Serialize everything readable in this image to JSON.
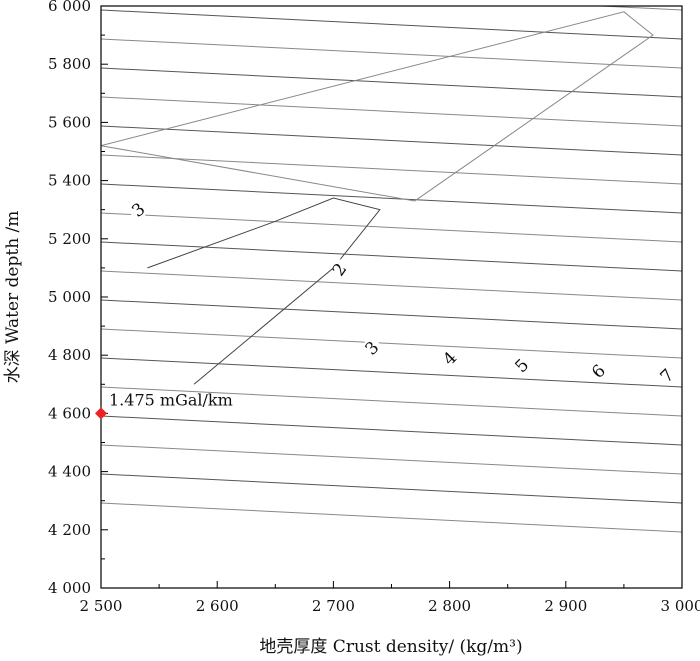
{
  "chart_data": {
    "type": "contour",
    "title": "",
    "xlabel": "地壳厚度 Crust density/ (kg/m³)",
    "ylabel": "水深 Water depth /m",
    "xlim": [
      2500,
      3000
    ],
    "ylim": [
      4000,
      6000
    ],
    "x_ticks": [
      2500,
      2600,
      2700,
      2800,
      2900,
      3000
    ],
    "x_tick_labels": [
      "2 500",
      "2 600",
      "2 700",
      "2 800",
      "2 900",
      "3 000"
    ],
    "y_ticks": [
      4000,
      4200,
      4400,
      4600,
      4800,
      5000,
      5200,
      5400,
      5600,
      5800,
      6000
    ],
    "y_tick_labels": [
      "4 000",
      "4 200",
      "4 400",
      "4 600",
      "4 800",
      "5 000",
      "5 200",
      "5 400",
      "5 600",
      "5 800",
      "6 000"
    ],
    "contour_labels": [
      {
        "text": "3",
        "x": 2532,
        "y": 5300,
        "angle": -38
      },
      {
        "text": "2",
        "x": 2705,
        "y": 5095,
        "angle": -55
      },
      {
        "text": "3",
        "x": 2733,
        "y": 4825,
        "angle": -45
      },
      {
        "text": "4",
        "x": 2800,
        "y": 4790,
        "angle": -45
      },
      {
        "text": "5",
        "x": 2862,
        "y": 4765,
        "angle": -45
      },
      {
        "text": "6",
        "x": 2928,
        "y": 4745,
        "angle": -45
      },
      {
        "text": "7",
        "x": 2987,
        "y": 4730,
        "angle": -45
      }
    ],
    "marker": {
      "x": 2500,
      "y": 4600,
      "color": "#ee2222",
      "label": "1.475 mGal/km"
    },
    "contour_color": "#555555"
  }
}
